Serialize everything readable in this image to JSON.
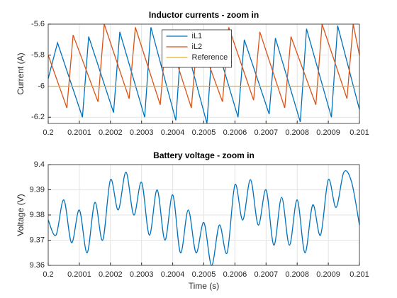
{
  "chart_data": [
    {
      "type": "line",
      "title": "Inductor currents - zoom in",
      "ylabel": "Current (A)",
      "xlim": [
        0.2,
        0.201
      ],
      "xticks": [
        0.2,
        0.2001,
        0.2002,
        0.2003,
        0.2004,
        0.2005,
        0.2006,
        0.2007,
        0.2008,
        0.2009,
        0.201
      ],
      "ylim": [
        -6.24,
        -5.6
      ],
      "yticks": [
        -6.2,
        -6,
        -5.8,
        -5.6
      ],
      "grid": true,
      "legend": "top",
      "series": [
        {
          "name": "iL1",
          "color": "#0072BD",
          "x": [
            0.2,
            0.20003,
            0.20011,
            0.20013,
            0.20021,
            0.20023,
            0.20031,
            0.20033,
            0.20041,
            0.20043,
            0.20051,
            0.20053,
            0.20061,
            0.20063,
            0.20071,
            0.20073,
            0.20081,
            0.20083,
            0.20091,
            0.20093,
            0.201
          ],
          "values": [
            -5.95,
            -5.72,
            -6.2,
            -5.68,
            -6.17,
            -5.65,
            -6.2,
            -5.62,
            -6.22,
            -5.64,
            -6.24,
            -5.66,
            -6.2,
            -5.7,
            -6.18,
            -5.69,
            -6.23,
            -5.63,
            -6.2,
            -5.61,
            -6.15
          ]
        },
        {
          "name": "iL2",
          "color": "#D95319",
          "x": [
            0.2,
            0.20006,
            0.20008,
            0.20016,
            0.20018,
            0.20026,
            0.20028,
            0.20036,
            0.20038,
            0.20046,
            0.20048,
            0.20056,
            0.20058,
            0.20066,
            0.20068,
            0.20076,
            0.20078,
            0.20086,
            0.20088,
            0.20096,
            0.20098,
            0.201
          ],
          "values": [
            -5.8,
            -6.14,
            -5.67,
            -6.1,
            -5.6,
            -6.08,
            -5.62,
            -6.12,
            -5.64,
            -6.14,
            -5.66,
            -6.1,
            -5.62,
            -6.09,
            -5.65,
            -6.14,
            -5.68,
            -6.12,
            -5.6,
            -6.08,
            -5.6,
            -5.8
          ]
        },
        {
          "name": "Reference",
          "color": "#EDB120",
          "x": [
            0.2,
            0.201
          ],
          "values": [
            -6,
            -6
          ]
        }
      ]
    },
    {
      "type": "line",
      "title": "Battery voltage - zoom in",
      "xlabel": "Time (s)",
      "ylabel": "Voltage (V)",
      "xlim": [
        0.2,
        0.201
      ],
      "xticks": [
        0.2,
        0.2001,
        0.2002,
        0.2003,
        0.2004,
        0.2005,
        0.2006,
        0.2007,
        0.2008,
        0.2009,
        0.201
      ],
      "ylim": [
        9.36,
        9.4
      ],
      "yticks": [
        9.36,
        9.37,
        9.38,
        9.39,
        9.4
      ],
      "grid": true,
      "x": [
        0.2,
        0.200025,
        0.20005,
        0.200075,
        0.2001,
        0.200125,
        0.20015,
        0.200175,
        0.2002,
        0.200225,
        0.20025,
        0.200275,
        0.2003,
        0.200325,
        0.20035,
        0.200375,
        0.2004,
        0.200425,
        0.20045,
        0.200475,
        0.2005,
        0.200525,
        0.20055,
        0.200575,
        0.2006,
        0.200625,
        0.20065,
        0.200675,
        0.2007,
        0.200725,
        0.20075,
        0.200775,
        0.2008,
        0.200825,
        0.20085,
        0.200875,
        0.2009,
        0.200925,
        0.20095,
        0.200975,
        0.201
      ],
      "series": [
        {
          "name": "Battery voltage",
          "color": "#0072BD",
          "values": [
            9.378,
            9.372,
            9.386,
            9.369,
            9.382,
            9.365,
            9.385,
            9.37,
            9.394,
            9.382,
            9.397,
            9.38,
            9.393,
            9.372,
            9.39,
            9.37,
            9.388,
            9.365,
            9.382,
            9.365,
            9.377,
            9.36,
            9.376,
            9.365,
            9.392,
            9.378,
            9.394,
            9.376,
            9.39,
            9.368,
            9.387,
            9.368,
            9.386,
            9.365,
            9.384,
            9.372,
            9.394,
            9.383,
            9.397,
            9.393,
            9.376
          ]
        }
      ]
    }
  ]
}
